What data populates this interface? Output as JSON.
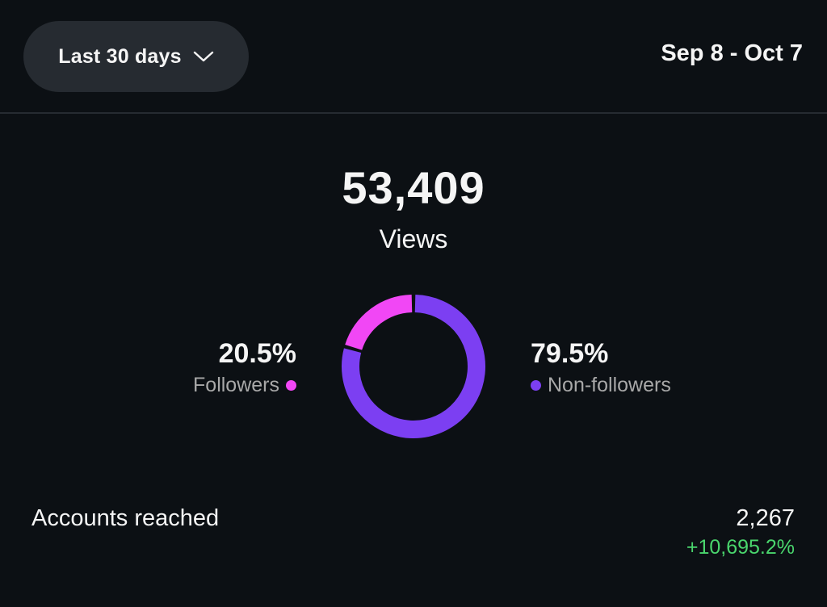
{
  "header": {
    "period_label": "Last 30 days",
    "date_range": "Sep 8 - Oct 7"
  },
  "views": {
    "count": "53,409",
    "label": "Views"
  },
  "audience": {
    "followers": {
      "percent": "20.5%",
      "label": "Followers",
      "value": 20.5,
      "color": "#f147f5"
    },
    "non_followers": {
      "percent": "79.5%",
      "label": "Non-followers",
      "value": 79.5,
      "color": "#7c3ff2"
    }
  },
  "accounts_reached": {
    "label": "Accounts reached",
    "value": "2,267",
    "change": "+10,695.2%",
    "change_color": "#4ad66d"
  },
  "icons": {
    "dropdown": "chevron-down-icon"
  }
}
